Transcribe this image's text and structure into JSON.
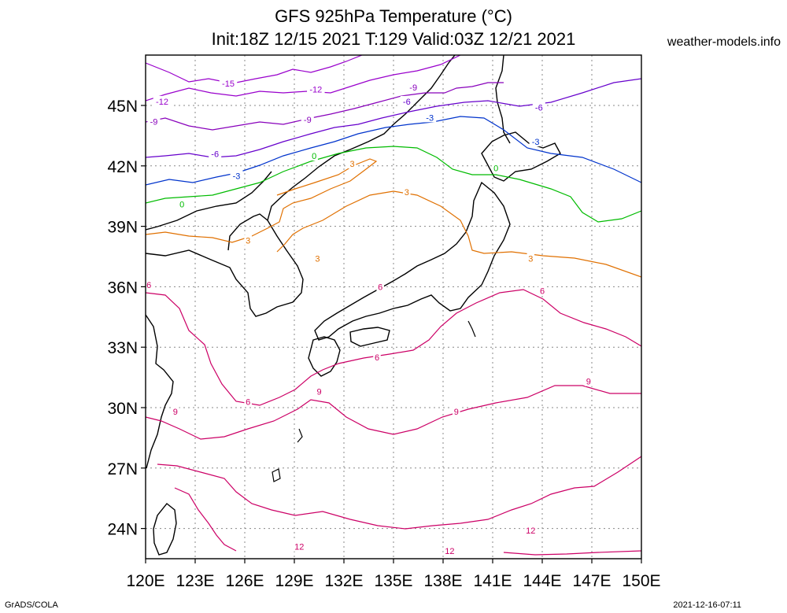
{
  "title_line1": "GFS 925hPa Temperature (°C)",
  "title_line2": "Init:18Z 12/15 2021 T:129 Valid:03Z 12/21 2021",
  "site": "weather-models.info",
  "footer_left": "GrADS/COLA",
  "footer_right": "2021-12-16-07:11",
  "map": {
    "lon_labels": [
      "120E",
      "123E",
      "126E",
      "129E",
      "132E",
      "135E",
      "138E",
      "141E",
      "144E",
      "147E",
      "150E"
    ],
    "lat_labels": [
      "45N",
      "42N",
      "39N",
      "36N",
      "33N",
      "30N",
      "27N",
      "24N"
    ],
    "lon_range": [
      120,
      150
    ],
    "lat_range": [
      22.5,
      47.5
    ]
  },
  "contour_colors": {
    "-15": "#9900cc",
    "-12": "#9900cc",
    "-9": "#8800bb",
    "-6": "#6600cc",
    "-3": "#0033cc",
    "0": "#00bb00",
    "3": "#e07000",
    "6": "#cc0066",
    "9": "#cc0066",
    "12": "#cc0066"
  },
  "contour_labels": [
    {
      "text": "-15",
      "lon": 125.0,
      "lat": 46.1
    },
    {
      "text": "-12",
      "lon": 121.0,
      "lat": 45.2
    },
    {
      "text": "-12",
      "lon": 130.3,
      "lat": 45.8
    },
    {
      "text": "-9",
      "lon": 120.5,
      "lat": 44.2
    },
    {
      "text": "-9",
      "lon": 129.8,
      "lat": 44.3
    },
    {
      "text": "-9",
      "lon": 136.2,
      "lat": 45.9
    },
    {
      "text": "-6",
      "lon": 124.2,
      "lat": 42.6
    },
    {
      "text": "-6",
      "lon": 135.8,
      "lat": 45.2
    },
    {
      "text": "-6",
      "lon": 143.8,
      "lat": 44.9
    },
    {
      "text": "-3",
      "lon": 125.5,
      "lat": 41.5
    },
    {
      "text": "-3",
      "lon": 137.2,
      "lat": 44.4
    },
    {
      "text": "-3",
      "lon": 143.6,
      "lat": 43.2
    },
    {
      "text": "0",
      "lon": 122.2,
      "lat": 40.1
    },
    {
      "text": "0",
      "lon": 130.2,
      "lat": 42.5
    },
    {
      "text": "0",
      "lon": 141.2,
      "lat": 41.9
    },
    {
      "text": "3",
      "lon": 132.5,
      "lat": 42.1
    },
    {
      "text": "3",
      "lon": 135.8,
      "lat": 40.7
    },
    {
      "text": "3",
      "lon": 126.2,
      "lat": 38.3
    },
    {
      "text": "3",
      "lon": 130.4,
      "lat": 37.4
    },
    {
      "text": "3",
      "lon": 143.3,
      "lat": 37.4
    },
    {
      "text": "6",
      "lon": 120.2,
      "lat": 36.1
    },
    {
      "text": "6",
      "lon": 134.2,
      "lat": 36.0
    },
    {
      "text": "6",
      "lon": 134.0,
      "lat": 32.5
    },
    {
      "text": "6",
      "lon": 144.0,
      "lat": 35.8
    },
    {
      "text": "6",
      "lon": 126.2,
      "lat": 30.3
    },
    {
      "text": "9",
      "lon": 121.8,
      "lat": 29.8
    },
    {
      "text": "9",
      "lon": 130.5,
      "lat": 30.8
    },
    {
      "text": "9",
      "lon": 138.8,
      "lat": 29.8
    },
    {
      "text": "9",
      "lon": 146.8,
      "lat": 31.3
    },
    {
      "text": "12",
      "lon": 129.3,
      "lat": 23.1
    },
    {
      "text": "12",
      "lon": 138.4,
      "lat": 22.9
    },
    {
      "text": "12",
      "lon": 143.3,
      "lat": 23.9
    }
  ]
}
